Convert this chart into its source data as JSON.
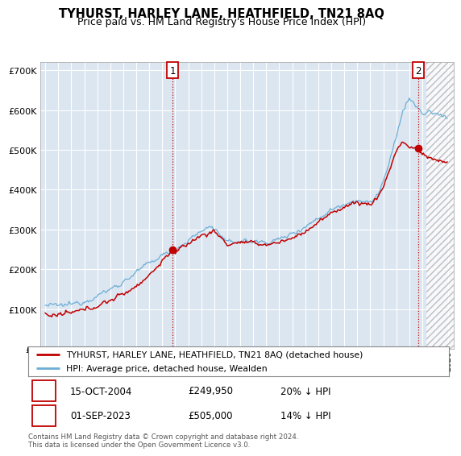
{
  "title": "TYHURST, HARLEY LANE, HEATHFIELD, TN21 8AQ",
  "subtitle": "Price paid vs. HM Land Registry's House Price Index (HPI)",
  "ylim": [
    0,
    720000
  ],
  "yticks": [
    0,
    100000,
    200000,
    300000,
    400000,
    500000,
    600000,
    700000
  ],
  "ytick_labels": [
    "£0",
    "£100K",
    "£200K",
    "£300K",
    "£400K",
    "£500K",
    "£600K",
    "£700K"
  ],
  "hpi_color": "#6baed6",
  "price_color": "#c00000",
  "sale1_date": "15-OCT-2004",
  "sale1_price": 249950,
  "sale1_pct": "20% ↓ HPI",
  "sale2_date": "01-SEP-2023",
  "sale2_price": 505000,
  "sale2_pct": "14% ↓ HPI",
  "legend_line1": "TYHURST, HARLEY LANE, HEATHFIELD, TN21 8AQ (detached house)",
  "legend_line2": "HPI: Average price, detached house, Wealden",
  "footnote": "Contains HM Land Registry data © Crown copyright and database right 2024.\nThis data is licensed under the Open Government Licence v3.0.",
  "plot_bg_color": "#dce6f1",
  "grid_color": "#ffffff",
  "start_year": 1995,
  "end_year": 2026
}
